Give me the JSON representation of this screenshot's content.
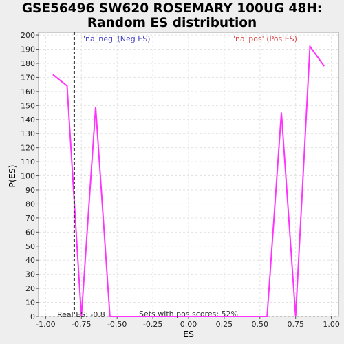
{
  "chart_data": {
    "type": "line",
    "title_line1": "GSE56496 SW620 ROSEMARY 100UG 48H:",
    "title_line2": "Random ES distribution",
    "xlabel": "ES",
    "ylabel": "P(ES)",
    "xlim": [
      -1.05,
      1.05
    ],
    "ylim": [
      0,
      202
    ],
    "xticks": [
      "-1.00",
      "-0.75",
      "-0.50",
      "-0.25",
      "0.00",
      "0.25",
      "0.50",
      "0.75",
      "1.00"
    ],
    "xtick_values": [
      -1.0,
      -0.75,
      -0.5,
      -0.25,
      0.0,
      0.25,
      0.5,
      0.75,
      1.0
    ],
    "yticks": [
      0,
      10,
      20,
      30,
      40,
      50,
      60,
      70,
      80,
      90,
      100,
      110,
      120,
      130,
      140,
      150,
      160,
      170,
      180,
      190,
      200
    ],
    "grid": true,
    "series": [
      {
        "color": "#ff33ff",
        "x": [
          -0.95,
          -0.85,
          -0.75,
          -0.65,
          -0.55,
          -0.45,
          -0.35,
          -0.25,
          -0.15,
          -0.05,
          0.05,
          0.15,
          0.25,
          0.35,
          0.45,
          0.55,
          0.65,
          0.75,
          0.85,
          0.95
        ],
        "y": [
          172,
          164,
          0,
          149,
          0,
          0,
          0,
          0,
          0,
          0,
          0,
          0,
          0,
          0,
          0,
          0,
          145,
          0,
          192,
          178
        ]
      }
    ],
    "real_es": {
      "x": -0.8,
      "label": "Real ES: -0.8"
    },
    "neg_legend": {
      "text": "'na_neg' (Neg ES)",
      "color": "#4444cc"
    },
    "pos_legend": {
      "text": "'na_pos' (Pos ES)",
      "color": "#dd4444"
    },
    "pos_scores_note": "Sets with pos scores: 52%"
  }
}
